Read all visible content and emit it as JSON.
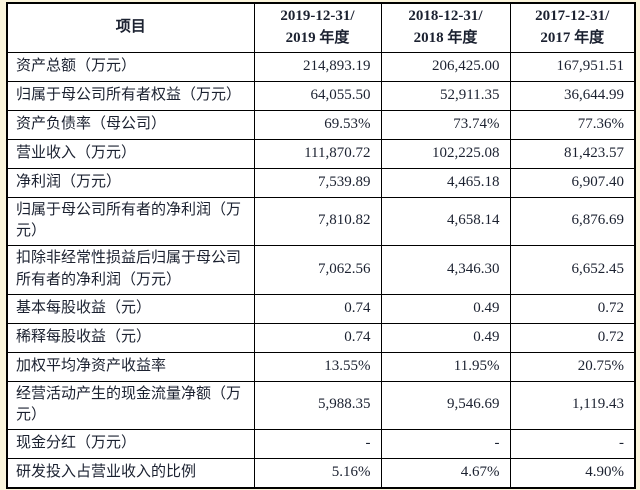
{
  "colors": {
    "page_background": "#fbf5dc",
    "cell_background": "#ffffff",
    "border": "#000000",
    "text": "#1b2130"
  },
  "table": {
    "header": {
      "item_label": "项目",
      "columns": [
        {
          "line1": "2019-12-31/",
          "line2": "2019 年度"
        },
        {
          "line1": "2018-12-31/",
          "line2": "2018 年度"
        },
        {
          "line1": "2017-12-31/",
          "line2": "2017 年度"
        }
      ]
    },
    "rows": [
      {
        "label": "资产总额（万元）",
        "values": [
          "214,893.19",
          "206,425.00",
          "167,951.51"
        ]
      },
      {
        "label": "归属于母公司所有者权益（万元）",
        "values": [
          "64,055.50",
          "52,911.35",
          "36,644.99"
        ]
      },
      {
        "label": "资产负债率（母公司）",
        "values": [
          "69.53%",
          "73.74%",
          "77.36%"
        ]
      },
      {
        "label": "营业收入（万元）",
        "values": [
          "111,870.72",
          "102,225.08",
          "81,423.57"
        ]
      },
      {
        "label": "净利润（万元）",
        "values": [
          "7,539.89",
          "4,465.18",
          "6,907.40"
        ]
      },
      {
        "label": "归属于母公司所有者的净利润（万元）",
        "values": [
          "7,810.82",
          "4,658.14",
          "6,876.69"
        ]
      },
      {
        "label": "扣除非经常性损益后归属于母公司所有者的净利润（万元）",
        "values": [
          "7,062.56",
          "4,346.30",
          "6,652.45"
        ]
      },
      {
        "label": "基本每股收益（元）",
        "values": [
          "0.74",
          "0.49",
          "0.72"
        ]
      },
      {
        "label": "稀释每股收益（元）",
        "values": [
          "0.74",
          "0.49",
          "0.72"
        ]
      },
      {
        "label": "加权平均净资产收益率",
        "values": [
          "13.55%",
          "11.95%",
          "20.75%"
        ]
      },
      {
        "label": "经营活动产生的现金流量净额（万元）",
        "values": [
          "5,988.35",
          "9,546.69",
          "1,119.43"
        ]
      },
      {
        "label": "现金分红（万元）",
        "values": [
          "-",
          "-",
          "-"
        ]
      },
      {
        "label": "研发投入占营业收入的比例",
        "values": [
          "5.16%",
          "4.67%",
          "4.90%"
        ]
      }
    ]
  }
}
